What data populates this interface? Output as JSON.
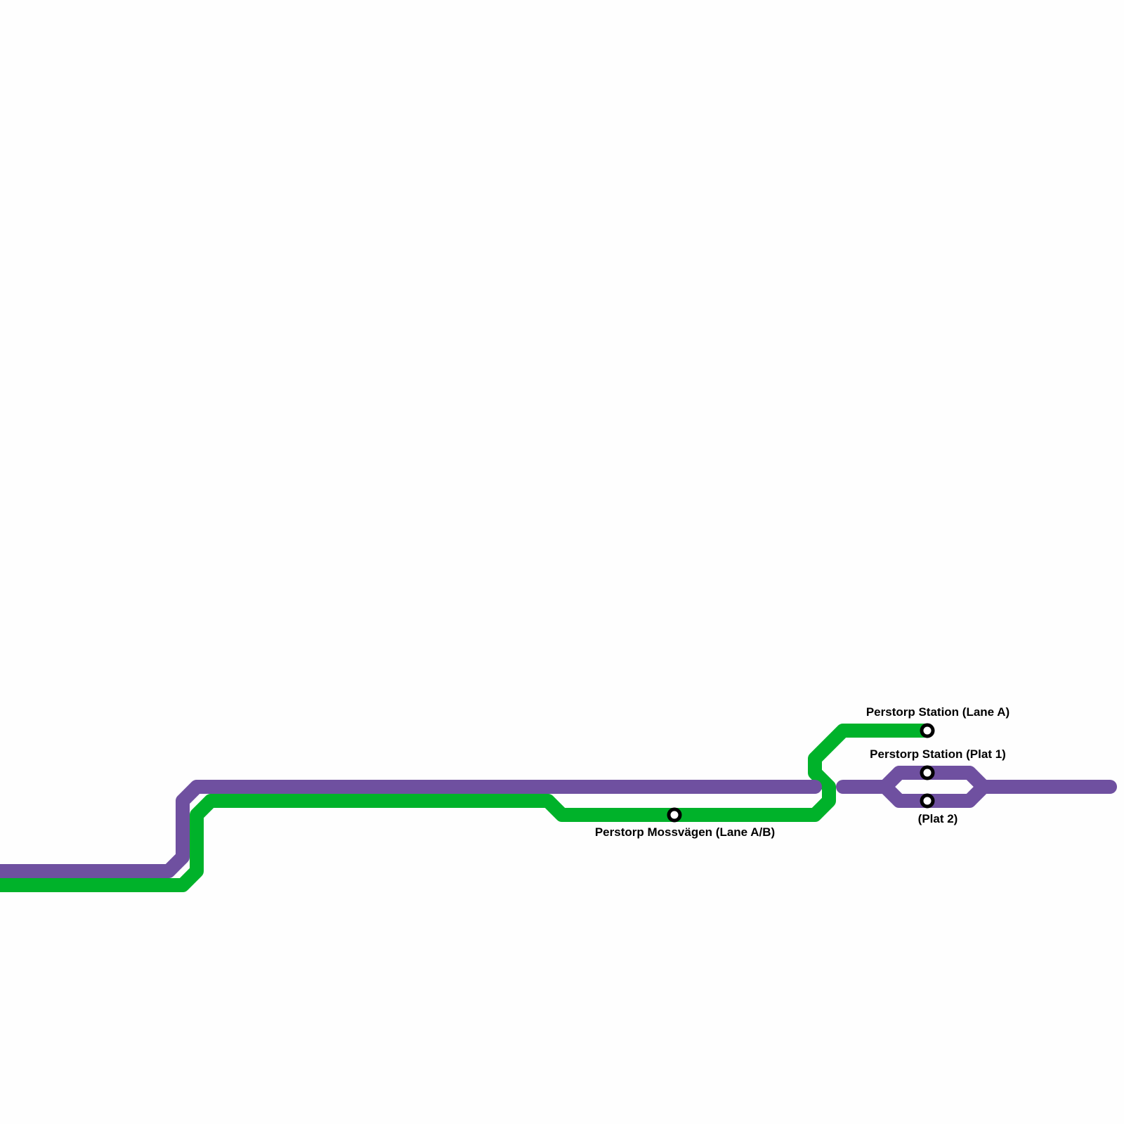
{
  "lines": [
    {
      "id": "purple",
      "color": "#6f50a0"
    },
    {
      "id": "green",
      "color": "#00b22a"
    }
  ],
  "stations": [
    {
      "id": "mossvagen",
      "label": "Perstorp Mossvägen (Lane A/B)",
      "line": "green"
    },
    {
      "id": "lane_a",
      "label": "Perstorp Station (Lane A)",
      "line": "green"
    },
    {
      "id": "plat1",
      "label": "Perstorp Station (Plat 1)",
      "line": "purple"
    },
    {
      "id": "plat2",
      "label": "(Plat 2)",
      "line": "purple"
    }
  ]
}
